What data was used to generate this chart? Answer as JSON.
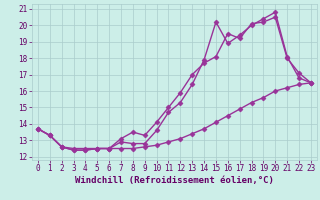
{
  "xlabel": "Windchill (Refroidissement éolien,°C)",
  "background_color": "#cceee8",
  "grid_color": "#aacccc",
  "line_color": "#993399",
  "xlim": [
    -0.5,
    23.5
  ],
  "ylim": [
    11.8,
    21.3
  ],
  "yticks": [
    12,
    13,
    14,
    15,
    16,
    17,
    18,
    19,
    20,
    21
  ],
  "xticks": [
    0,
    1,
    2,
    3,
    4,
    5,
    6,
    7,
    8,
    9,
    10,
    11,
    12,
    13,
    14,
    15,
    16,
    17,
    18,
    19,
    20,
    21,
    22,
    23
  ],
  "line1_x": [
    0,
    1,
    2,
    3,
    4,
    5,
    6,
    7,
    8,
    9,
    10,
    11,
    12,
    13,
    14,
    15,
    16,
    17,
    18,
    19,
    20,
    21,
    22,
    23
  ],
  "line1_y": [
    13.7,
    13.3,
    12.6,
    12.4,
    12.4,
    12.5,
    12.5,
    13.1,
    13.5,
    13.3,
    14.1,
    15.0,
    15.9,
    17.0,
    17.7,
    18.1,
    19.5,
    19.2,
    20.1,
    20.2,
    20.5,
    18.0,
    17.1,
    16.5
  ],
  "line2_x": [
    0,
    1,
    2,
    3,
    4,
    5,
    6,
    7,
    8,
    9,
    10,
    11,
    12,
    13,
    14,
    15,
    16,
    17,
    18,
    19,
    20,
    21,
    22,
    23
  ],
  "line2_y": [
    13.7,
    13.3,
    12.6,
    12.4,
    12.4,
    12.5,
    12.5,
    12.9,
    12.8,
    12.8,
    13.6,
    14.7,
    15.3,
    16.4,
    17.9,
    20.2,
    18.9,
    19.4,
    20.0,
    20.4,
    20.8,
    18.1,
    16.8,
    16.5
  ],
  "line3_x": [
    0,
    1,
    2,
    3,
    4,
    5,
    6,
    7,
    8,
    9,
    10,
    11,
    12,
    13,
    14,
    15,
    16,
    17,
    18,
    19,
    20,
    21,
    22,
    23
  ],
  "line3_y": [
    13.7,
    13.3,
    12.6,
    12.5,
    12.5,
    12.5,
    12.5,
    12.5,
    12.5,
    12.6,
    12.7,
    12.9,
    13.1,
    13.4,
    13.7,
    14.1,
    14.5,
    14.9,
    15.3,
    15.6,
    16.0,
    16.2,
    16.4,
    16.5
  ],
  "marker": "D",
  "markersize": 2.5,
  "linewidth": 1.0,
  "font_color": "#660066",
  "tick_fontsize": 5.5,
  "label_fontsize": 6.5
}
